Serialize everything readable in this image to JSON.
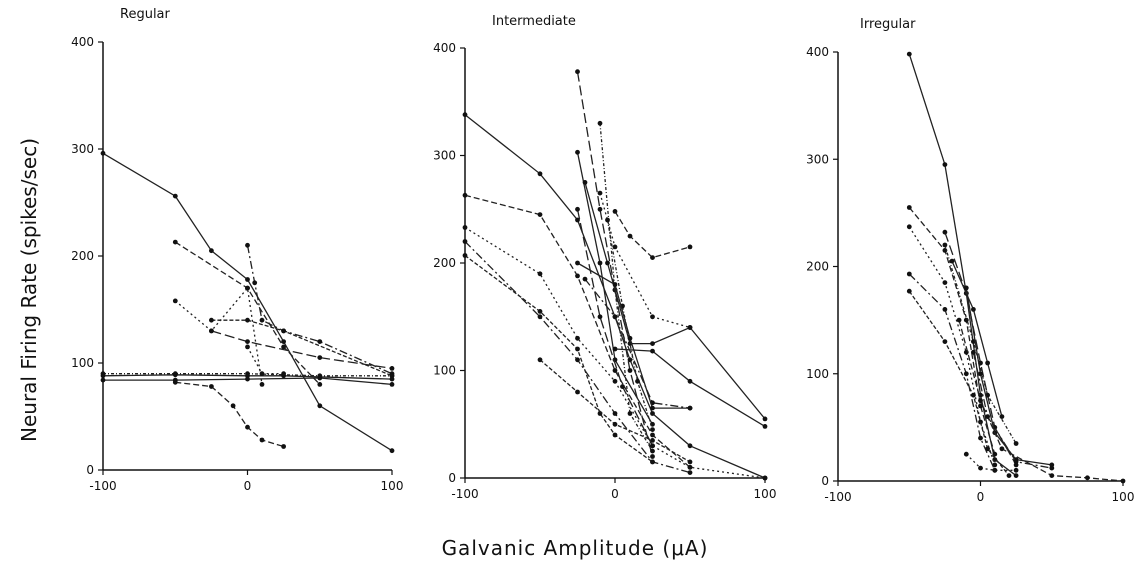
{
  "chart_data": [
    {
      "type": "line",
      "title": "Regular",
      "ylim": [
        0,
        400
      ],
      "xlim": [
        -100,
        100
      ],
      "xticks": [
        "-100",
        "0",
        "100"
      ],
      "yticks": [
        "0",
        "100",
        "200",
        "300",
        "400"
      ],
      "series": [
        {
          "points": [
            [
              -100,
              296
            ],
            [
              -50,
              256
            ],
            [
              -25,
              205
            ],
            [
              0,
              178
            ],
            [
              25,
              120
            ],
            [
              50,
              60
            ],
            [
              100,
              18
            ]
          ]
        },
        {
          "points": [
            [
              -50,
              213
            ],
            [
              0,
              170
            ],
            [
              25,
              115
            ],
            [
              50,
              80
            ]
          ]
        },
        {
          "points": [
            [
              -50,
              158
            ],
            [
              -25,
              130
            ],
            [
              0,
              170
            ],
            [
              10,
              80
            ]
          ]
        },
        {
          "points": [
            [
              0,
              210
            ],
            [
              5,
              175
            ],
            [
              10,
              140
            ],
            [
              25,
              130
            ],
            [
              50,
              120
            ],
            [
              100,
              90
            ]
          ]
        },
        {
          "points": [
            [
              -25,
              140
            ],
            [
              0,
              140
            ],
            [
              25,
              130
            ],
            [
              100,
              88
            ]
          ]
        },
        {
          "points": [
            [
              -25,
              130
            ],
            [
              0,
              120
            ],
            [
              50,
              105
            ],
            [
              100,
              95
            ]
          ]
        },
        {
          "points": [
            [
              -100,
              90
            ],
            [
              -50,
              90
            ],
            [
              0,
              90
            ],
            [
              50,
              88
            ],
            [
              100,
              88
            ]
          ]
        },
        {
          "points": [
            [
              -100,
              88
            ],
            [
              -50,
              89
            ],
            [
              0,
              88
            ],
            [
              25,
              88
            ],
            [
              100,
              85
            ]
          ]
        },
        {
          "points": [
            [
              -100,
              84
            ],
            [
              -50,
              84
            ],
            [
              0,
              85
            ],
            [
              50,
              86
            ],
            [
              100,
              80
            ]
          ]
        },
        {
          "points": [
            [
              -50,
              82
            ],
            [
              -25,
              78
            ],
            [
              -10,
              60
            ],
            [
              0,
              40
            ],
            [
              10,
              28
            ],
            [
              25,
              22
            ]
          ]
        },
        {
          "points": [
            [
              0,
              115
            ],
            [
              10,
              90
            ],
            [
              25,
              90
            ]
          ]
        }
      ]
    },
    {
      "type": "line",
      "title": "Intermediate",
      "ylim": [
        0,
        400
      ],
      "xlim": [
        -100,
        100
      ],
      "xticks": [
        "-100",
        "0",
        "100"
      ],
      "yticks": [
        "0",
        "100",
        "200",
        "300",
        "400"
      ],
      "series": [
        {
          "points": [
            [
              -100,
              338
            ],
            [
              -50,
              283
            ],
            [
              -25,
              240
            ],
            [
              0,
              150
            ],
            [
              10,
              110
            ],
            [
              25,
              60
            ],
            [
              50,
              30
            ],
            [
              100,
              0
            ]
          ]
        },
        {
          "points": [
            [
              -100,
              263
            ],
            [
              -50,
              245
            ],
            [
              -25,
              188
            ],
            [
              0,
              100
            ],
            [
              25,
              40
            ],
            [
              50,
              10
            ]
          ]
        },
        {
          "points": [
            [
              -100,
              233
            ],
            [
              -50,
              190
            ],
            [
              -25,
              130
            ],
            [
              0,
              90
            ],
            [
              25,
              30
            ],
            [
              50,
              10
            ],
            [
              100,
              0
            ]
          ]
        },
        {
          "points": [
            [
              -100,
              220
            ],
            [
              -50,
              150
            ],
            [
              -25,
              110
            ],
            [
              0,
              60
            ],
            [
              25,
              15
            ],
            [
              50,
              5
            ]
          ]
        },
        {
          "points": [
            [
              -100,
              207
            ],
            [
              -50,
              155
            ],
            [
              -25,
              120
            ],
            [
              -10,
              60
            ],
            [
              0,
              40
            ],
            [
              25,
              15
            ]
          ]
        },
        {
          "points": [
            [
              -25,
              378
            ],
            [
              -10,
              250
            ],
            [
              0,
              175
            ],
            [
              10,
              100
            ],
            [
              25,
              20
            ]
          ]
        },
        {
          "points": [
            [
              -10,
              330
            ],
            [
              0,
              175
            ],
            [
              10,
              60
            ],
            [
              25,
              25
            ]
          ]
        },
        {
          "points": [
            [
              -25,
              303
            ],
            [
              -10,
              200
            ],
            [
              0,
              110
            ],
            [
              25,
              50
            ]
          ]
        },
        {
          "points": [
            [
              -20,
              275
            ],
            [
              -5,
              200
            ],
            [
              10,
              125
            ],
            [
              25,
              125
            ],
            [
              50,
              140
            ],
            [
              100,
              55
            ]
          ]
        },
        {
          "points": [
            [
              0,
              248
            ],
            [
              10,
              225
            ],
            [
              25,
              205
            ],
            [
              50,
              215
            ]
          ]
        },
        {
          "points": [
            [
              -10,
              265
            ],
            [
              0,
              215
            ],
            [
              25,
              150
            ],
            [
              50,
              140
            ]
          ]
        },
        {
          "points": [
            [
              -20,
              185
            ],
            [
              0,
              150
            ],
            [
              25,
              70
            ],
            [
              50,
              65
            ]
          ]
        },
        {
          "points": [
            [
              -50,
              110
            ],
            [
              -25,
              80
            ],
            [
              0,
              50
            ],
            [
              25,
              35
            ],
            [
              50,
              15
            ]
          ]
        },
        {
          "points": [
            [
              -25,
              250
            ],
            [
              -10,
              150
            ],
            [
              5,
              85
            ],
            [
              25,
              30
            ]
          ]
        },
        {
          "points": [
            [
              -5,
              240
            ],
            [
              5,
              160
            ],
            [
              15,
              90
            ],
            [
              25,
              45
            ]
          ]
        },
        {
          "points": [
            [
              0,
              120
            ],
            [
              25,
              118
            ],
            [
              50,
              90
            ],
            [
              100,
              48
            ]
          ]
        },
        {
          "points": [
            [
              -25,
              200
            ],
            [
              0,
              180
            ],
            [
              10,
              130
            ],
            [
              25,
              65
            ],
            [
              50,
              65
            ]
          ]
        }
      ]
    },
    {
      "type": "line",
      "title": "Irregular",
      "ylim": [
        0,
        400
      ],
      "xlim": [
        -100,
        100
      ],
      "xticks": [
        "-100",
        "0",
        "100"
      ],
      "yticks": [
        "0",
        "100",
        "200",
        "300",
        "400"
      ],
      "series": [
        {
          "points": [
            [
              -50,
              398
            ],
            [
              -25,
              295
            ],
            [
              -10,
              175
            ],
            [
              0,
              80
            ],
            [
              10,
              20
            ],
            [
              25,
              5
            ]
          ]
        },
        {
          "points": [
            [
              -50,
              255
            ],
            [
              -25,
              215
            ],
            [
              -10,
              150
            ],
            [
              0,
              70
            ],
            [
              10,
              25
            ]
          ]
        },
        {
          "points": [
            [
              -50,
              237
            ],
            [
              -25,
              185
            ],
            [
              -10,
              120
            ],
            [
              0,
              55
            ],
            [
              10,
              15
            ]
          ]
        },
        {
          "points": [
            [
              -50,
              193
            ],
            [
              -25,
              160
            ],
            [
              -10,
              100
            ],
            [
              0,
              40
            ],
            [
              10,
              10
            ]
          ]
        },
        {
          "points": [
            [
              -50,
              177
            ],
            [
              -25,
              130
            ],
            [
              -5,
              80
            ],
            [
              5,
              30
            ],
            [
              20,
              5
            ]
          ]
        },
        {
          "points": [
            [
              -25,
              232
            ],
            [
              -10,
              175
            ],
            [
              0,
              110
            ],
            [
              10,
              50
            ],
            [
              25,
              15
            ]
          ]
        },
        {
          "points": [
            [
              -25,
              220
            ],
            [
              -5,
              130
            ],
            [
              5,
              80
            ],
            [
              25,
              35
            ]
          ]
        },
        {
          "points": [
            [
              -20,
              205
            ],
            [
              -5,
              160
            ],
            [
              5,
              110
            ],
            [
              15,
              60
            ]
          ]
        },
        {
          "points": [
            [
              -10,
              180
            ],
            [
              0,
              100
            ],
            [
              10,
              45
            ],
            [
              25,
              20
            ],
            [
              50,
              15
            ]
          ]
        },
        {
          "points": [
            [
              -15,
              150
            ],
            [
              0,
              75
            ],
            [
              15,
              30
            ],
            [
              50,
              5
            ],
            [
              75,
              3
            ],
            [
              100,
              0
            ]
          ]
        },
        {
          "points": [
            [
              -10,
              25
            ],
            [
              0,
              12
            ],
            [
              10,
              10
            ],
            [
              25,
              10
            ]
          ]
        },
        {
          "points": [
            [
              -5,
              120
            ],
            [
              5,
              60
            ],
            [
              25,
              18
            ],
            [
              50,
              12
            ]
          ]
        }
      ]
    }
  ],
  "figure": {
    "y_axis_label": "Neural Firing Rate (spikes/sec)",
    "x_axis_label": "Galvanic Amplitude (μA)"
  }
}
